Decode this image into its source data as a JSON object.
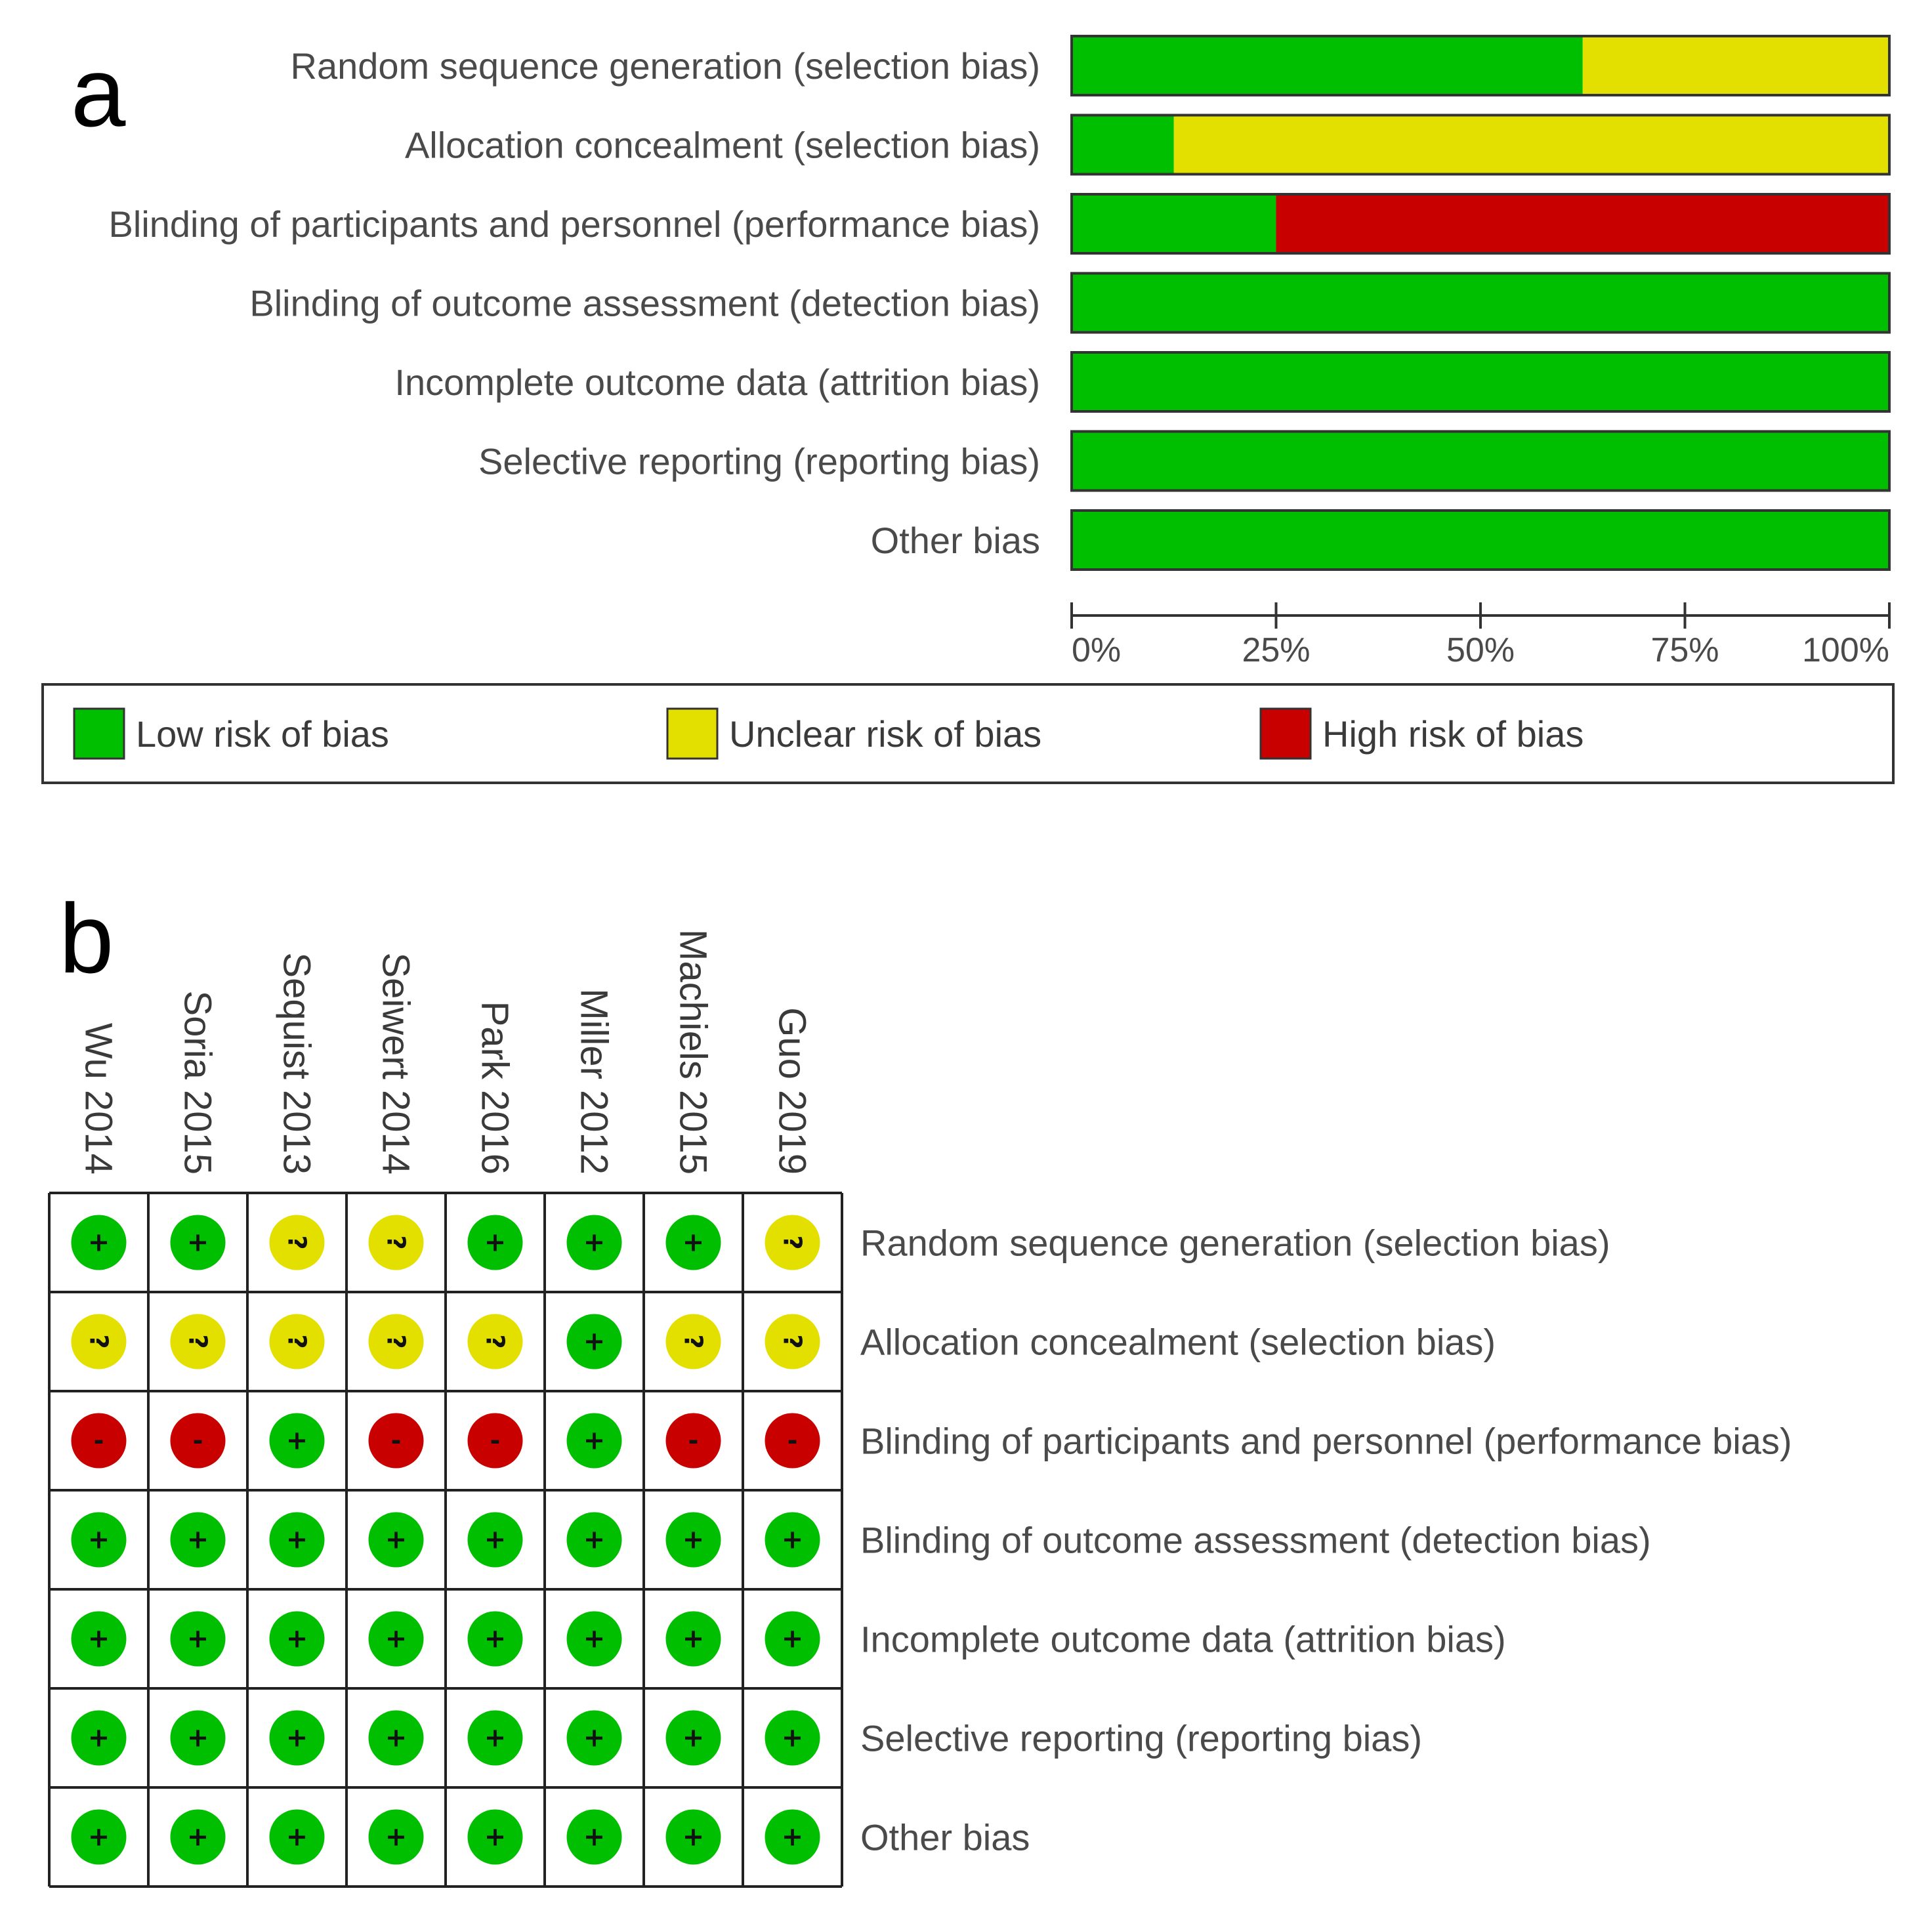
{
  "panel_a_label": "a",
  "panel_b_label": "b",
  "colors": {
    "low": "#00bf00",
    "unclear": "#e3e000",
    "high": "#c80000"
  },
  "chart_data": [
    {
      "type": "bar",
      "subtype": "stacked-horizontal-percent",
      "title": "a",
      "categories": [
        "Random sequence generation (selection bias)",
        "Allocation concealment (selection bias)",
        "Blinding of participants and personnel (performance bias)",
        "Blinding of outcome assessment (detection bias)",
        "Incomplete outcome data (attrition bias)",
        "Selective reporting (reporting bias)",
        "Other bias"
      ],
      "series": [
        {
          "name": "Low risk of bias",
          "key": "low",
          "values": [
            62.5,
            12.5,
            25,
            100,
            100,
            100,
            100
          ]
        },
        {
          "name": "Unclear risk of bias",
          "key": "unclear",
          "values": [
            37.5,
            87.5,
            0,
            0,
            0,
            0,
            0
          ]
        },
        {
          "name": "High risk of bias",
          "key": "high",
          "values": [
            0,
            0,
            75,
            0,
            0,
            0,
            0
          ]
        }
      ],
      "xlim": [
        0,
        100
      ],
      "xticks": [
        "0%",
        "25%",
        "50%",
        "75%",
        "100%"
      ],
      "legend": [
        "Low risk of bias",
        "Unclear risk of bias",
        "High risk of bias"
      ],
      "legend_position": "bottom"
    },
    {
      "type": "table",
      "subtype": "risk-of-bias-summary",
      "title": "b",
      "studies": [
        "Wu 2014",
        "Soria 2015",
        "Sequist 2013",
        "Seiwert 2014",
        "Park 2016",
        "Miller 2012",
        "Machiels 2015",
        "Guo 2019"
      ],
      "domains": [
        "Random sequence generation (selection bias)",
        "Allocation concealment (selection bias)",
        "Blinding of participants and personnel (performance bias)",
        "Blinding of outcome assessment (detection bias)",
        "Incomplete outcome data (attrition bias)",
        "Selective reporting (reporting bias)",
        "Other bias"
      ],
      "ratings": [
        [
          "low",
          "low",
          "unclear",
          "unclear",
          "low",
          "low",
          "low",
          "unclear"
        ],
        [
          "unclear",
          "unclear",
          "unclear",
          "unclear",
          "unclear",
          "low",
          "unclear",
          "unclear"
        ],
        [
          "high",
          "high",
          "low",
          "high",
          "high",
          "low",
          "high",
          "high"
        ],
        [
          "low",
          "low",
          "low",
          "low",
          "low",
          "low",
          "low",
          "low"
        ],
        [
          "low",
          "low",
          "low",
          "low",
          "low",
          "low",
          "low",
          "low"
        ],
        [
          "low",
          "low",
          "low",
          "low",
          "low",
          "low",
          "low",
          "low"
        ],
        [
          "low",
          "low",
          "low",
          "low",
          "low",
          "low",
          "low",
          "low"
        ]
      ],
      "symbols": {
        "low": "+",
        "unclear": "?",
        "high": "-"
      }
    }
  ]
}
